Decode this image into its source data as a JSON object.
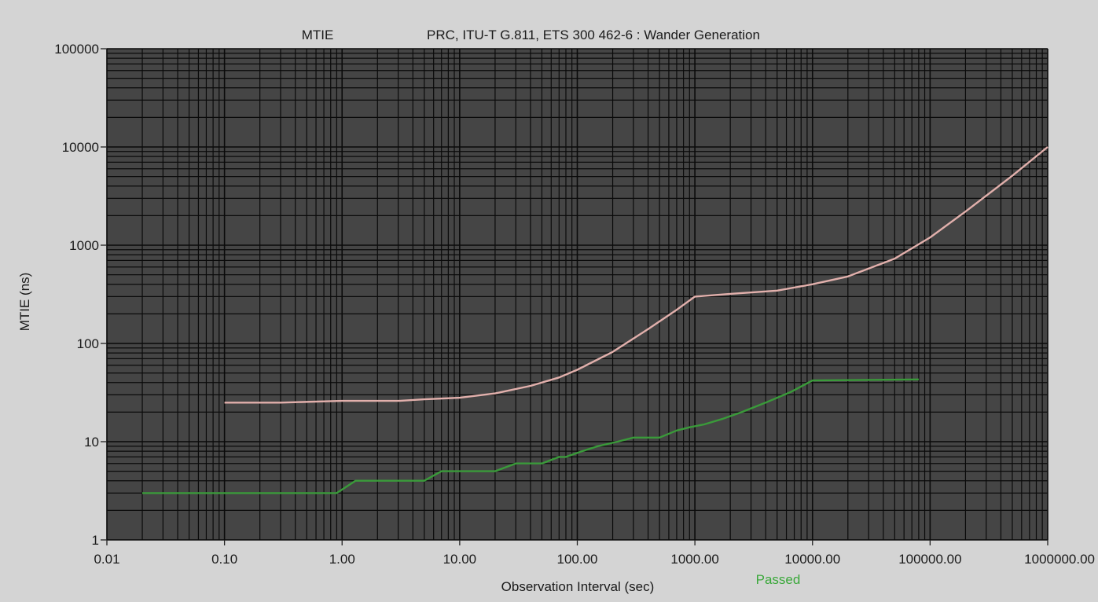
{
  "chart_data": {
    "type": "line",
    "title_left": "MTIE",
    "title": "PRC, ITU-T G.811, ETS 300 462-6 : Wander Generation",
    "xlabel": "Observation Interval (sec)",
    "ylabel": "MTIE (ns)",
    "x_scale": "log",
    "y_scale": "log",
    "xlim": [
      0.01,
      1000000
    ],
    "ylim": [
      1,
      100000
    ],
    "grid": true,
    "x_ticks": [
      0.01,
      0.1,
      1,
      10,
      100,
      1000,
      10000,
      100000,
      1000000
    ],
    "x_tick_labels": [
      "0.01",
      "0.10",
      "1.00",
      "10.00",
      "100.00",
      "1000.00",
      "10000.00",
      "100000.00",
      "1000000.00"
    ],
    "y_ticks": [
      1,
      10,
      100,
      1000,
      10000,
      100000
    ],
    "y_tick_labels": [
      "1",
      "10",
      "100",
      "1000",
      "10000",
      "100000"
    ],
    "status": "Passed",
    "series": [
      {
        "color": "#e2b0ac",
        "points": [
          [
            0.1,
            25
          ],
          [
            0.3,
            25
          ],
          [
            1,
            26
          ],
          [
            3,
            26
          ],
          [
            5,
            27
          ],
          [
            10,
            28
          ],
          [
            20,
            31
          ],
          [
            40,
            37
          ],
          [
            70,
            45
          ],
          [
            100,
            54
          ],
          [
            200,
            82
          ],
          [
            400,
            140
          ],
          [
            700,
            220
          ],
          [
            1000,
            300
          ],
          [
            2000,
            320
          ],
          [
            5000,
            345
          ],
          [
            10000,
            400
          ],
          [
            20000,
            480
          ],
          [
            50000,
            730
          ],
          [
            100000,
            1200
          ],
          [
            200000,
            2200
          ],
          [
            500000,
            5100
          ],
          [
            1000000,
            10000
          ]
        ]
      },
      {
        "color": "#3a9a3a",
        "points": [
          [
            0.02,
            3
          ],
          [
            0.9,
            3
          ],
          [
            1.3,
            4
          ],
          [
            5,
            4
          ],
          [
            7,
            5
          ],
          [
            20,
            5
          ],
          [
            30,
            6
          ],
          [
            50,
            6
          ],
          [
            70,
            7
          ],
          [
            80,
            7
          ],
          [
            110,
            8
          ],
          [
            150,
            9
          ],
          [
            220,
            10
          ],
          [
            300,
            11
          ],
          [
            500,
            11
          ],
          [
            700,
            13
          ],
          [
            900,
            14
          ],
          [
            1200,
            15
          ],
          [
            1700,
            17
          ],
          [
            2500,
            20
          ],
          [
            4000,
            25
          ],
          [
            6500,
            32
          ],
          [
            10000,
            42
          ],
          [
            80000,
            43
          ]
        ]
      }
    ]
  }
}
